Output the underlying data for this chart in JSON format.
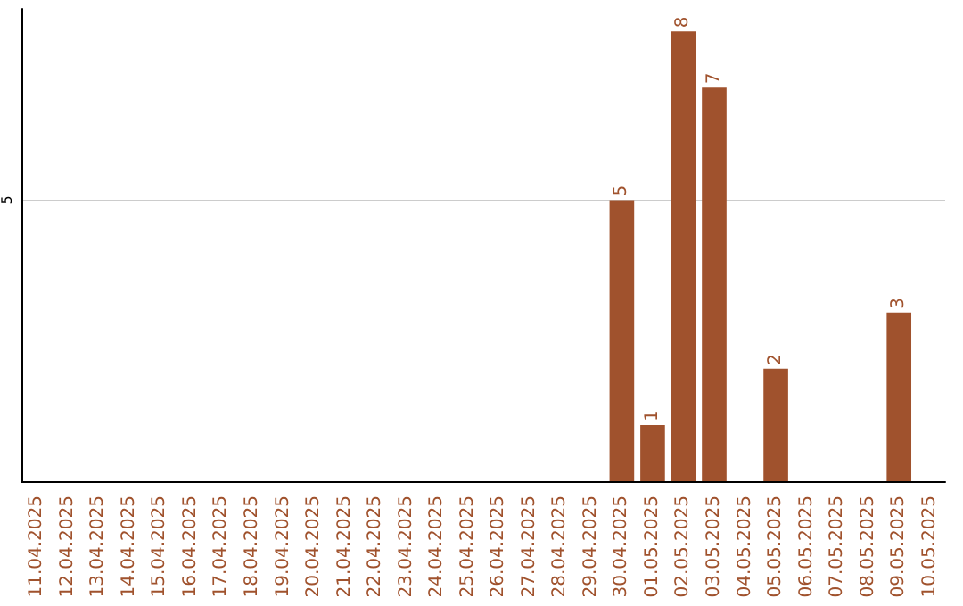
{
  "chart_data": {
    "type": "bar",
    "categories": [
      "11.04.2025",
      "12.04.2025",
      "13.04.2025",
      "14.04.2025",
      "15.04.2025",
      "16.04.2025",
      "17.04.2025",
      "18.04.2025",
      "19.04.2025",
      "20.04.2025",
      "21.04.2025",
      "22.04.2025",
      "23.04.2025",
      "24.04.2025",
      "25.04.2025",
      "26.04.2025",
      "27.04.2025",
      "28.04.2025",
      "29.04.2025",
      "30.04.2025",
      "01.05.2025",
      "02.05.2025",
      "03.05.2025",
      "04.05.2025",
      "05.05.2025",
      "06.05.2025",
      "07.05.2025",
      "08.05.2025",
      "09.05.2025",
      "10.05.2025"
    ],
    "values": [
      null,
      null,
      null,
      null,
      null,
      null,
      null,
      null,
      null,
      null,
      null,
      null,
      null,
      null,
      null,
      null,
      null,
      null,
      null,
      5,
      1,
      8,
      7,
      null,
      2,
      null,
      null,
      null,
      3,
      null
    ],
    "color": "#a0522d",
    "ylim": [
      0,
      8.4
    ],
    "yticks": [
      5
    ],
    "grid": "y",
    "data_labels": true
  }
}
